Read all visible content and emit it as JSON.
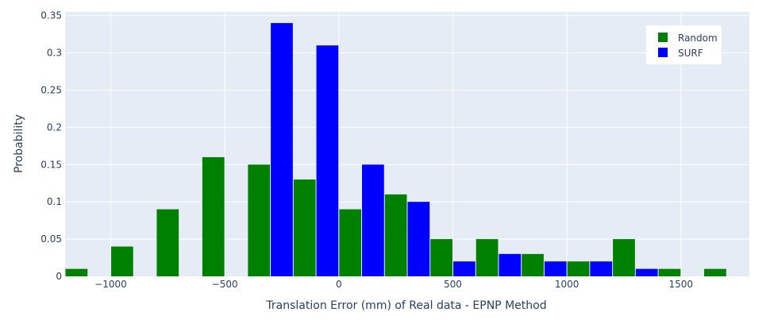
{
  "chart_data": {
    "type": "bar",
    "barmode": "group",
    "title": "",
    "xlabel": "Translation Error (mm) of Real data - EPNP Method",
    "ylabel": "Probability",
    "xlim": [
      -1200,
      1800
    ],
    "ylim": [
      0,
      0.355
    ],
    "bin_width": 200,
    "x": [
      -1100,
      -900,
      -700,
      -500,
      -300,
      -100,
      100,
      300,
      500,
      700,
      900,
      1100,
      1300,
      1500,
      1700
    ],
    "series": [
      {
        "name": "Random",
        "color": "#008000",
        "values": [
          0.01,
          0.04,
          0.09,
          0.16,
          0.15,
          0.13,
          0.09,
          0.11,
          0.05,
          0.05,
          0.03,
          0.02,
          0.05,
          0.01,
          0.01
        ]
      },
      {
        "name": "SURF",
        "color": "#0000ff",
        "values": [
          0,
          0,
          0,
          0,
          0.34,
          0.31,
          0.15,
          0.1,
          0.02,
          0.03,
          0.02,
          0.02,
          0.01,
          0,
          0
        ]
      }
    ],
    "x_ticks": [
      {
        "value": -1000,
        "label": "−1000"
      },
      {
        "value": -500,
        "label": "−500"
      },
      {
        "value": 0,
        "label": "0"
      },
      {
        "value": 500,
        "label": "500"
      },
      {
        "value": 1000,
        "label": "1000"
      },
      {
        "value": 1500,
        "label": "1500"
      }
    ],
    "y_ticks": [
      {
        "value": 0,
        "label": "0"
      },
      {
        "value": 0.05,
        "label": "0.05"
      },
      {
        "value": 0.1,
        "label": "0.1"
      },
      {
        "value": 0.15,
        "label": "0.15"
      },
      {
        "value": 0.2,
        "label": "0.2"
      },
      {
        "value": 0.25,
        "label": "0.25"
      },
      {
        "value": 0.3,
        "label": "0.3"
      },
      {
        "value": 0.35,
        "label": "0.35"
      }
    ],
    "grid": true,
    "legend_position": "top-right",
    "plot_background": "#e5ecf6"
  }
}
